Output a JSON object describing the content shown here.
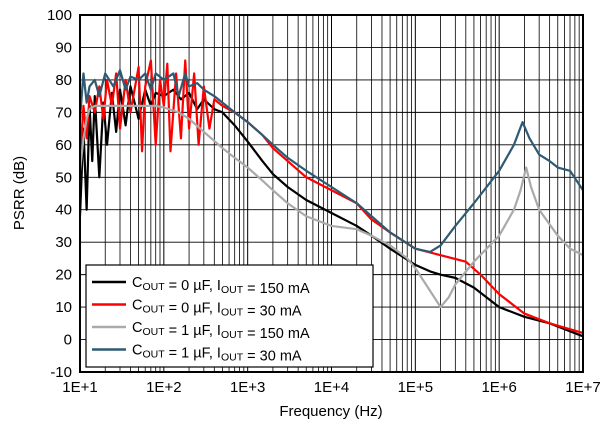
{
  "chart_data": {
    "type": "line",
    "xlabel": "Frequency (Hz)",
    "ylabel": "PSRR (dB)",
    "x_scale": "log",
    "xlim": [
      10,
      10000000
    ],
    "ylim": [
      -10,
      100
    ],
    "grid": true,
    "legend_position": "bottom-left",
    "x_tick_labels": [
      "1E+1",
      "1E+2",
      "1E+3",
      "1E+4",
      "1E+5",
      "1E+6",
      "1E+7"
    ],
    "x_tick_values": [
      10,
      100,
      1000,
      10000,
      100000,
      1000000,
      10000000
    ],
    "y_tick_values": [
      -10,
      0,
      10,
      20,
      30,
      40,
      50,
      60,
      70,
      80,
      90,
      100
    ],
    "y_tick_labels": [
      "-10",
      "0",
      "10",
      "20",
      "30",
      "40",
      "50",
      "60",
      "70",
      "80",
      "90",
      "100"
    ],
    "series": [
      {
        "color": "#000000",
        "legend": {
          "pre": "C",
          "sub1": "OUT",
          "mid": " = 0 µF, I",
          "sub2": "OUT",
          "post": " = 150 mA"
        },
        "points": [
          [
            10,
            38
          ],
          [
            11,
            65
          ],
          [
            12,
            40
          ],
          [
            13,
            72
          ],
          [
            14,
            55
          ],
          [
            15,
            75
          ],
          [
            17,
            50
          ],
          [
            19,
            73
          ],
          [
            21,
            60
          ],
          [
            24,
            76
          ],
          [
            27,
            64
          ],
          [
            30,
            77
          ],
          [
            35,
            66
          ],
          [
            40,
            78
          ],
          [
            50,
            68
          ],
          [
            60,
            77
          ],
          [
            70,
            72
          ],
          [
            80,
            76
          ],
          [
            100,
            75
          ],
          [
            130,
            77
          ],
          [
            160,
            74
          ],
          [
            200,
            76
          ],
          [
            250,
            71
          ],
          [
            300,
            74
          ],
          [
            400,
            71
          ],
          [
            500,
            70
          ],
          [
            700,
            66
          ],
          [
            1000,
            61
          ],
          [
            1500,
            55
          ],
          [
            2000,
            51
          ],
          [
            3000,
            47
          ],
          [
            5000,
            43
          ],
          [
            10000,
            39
          ],
          [
            20000,
            35
          ],
          [
            30000,
            32
          ],
          [
            50000,
            28
          ],
          [
            100000,
            23
          ],
          [
            150000,
            21
          ],
          [
            200000,
            20
          ],
          [
            300000,
            19
          ],
          [
            500000,
            16
          ],
          [
            1000000,
            10
          ],
          [
            2000000,
            7
          ],
          [
            4000000,
            5
          ],
          [
            10000000,
            1
          ]
        ]
      },
      {
        "color": "#ff0000",
        "legend": {
          "pre": "C",
          "sub1": "OUT",
          "mid": " = 0 µF, I",
          "sub2": "OUT",
          "post": " = 30 mA"
        },
        "points": [
          [
            10,
            55
          ],
          [
            11,
            72
          ],
          [
            12,
            62
          ],
          [
            13,
            75
          ],
          [
            15,
            70
          ],
          [
            17,
            78
          ],
          [
            19,
            68
          ],
          [
            21,
            80
          ],
          [
            24,
            72
          ],
          [
            27,
            82
          ],
          [
            30,
            65
          ],
          [
            35,
            80
          ],
          [
            40,
            70
          ],
          [
            50,
            84
          ],
          [
            55,
            58
          ],
          [
            60,
            78
          ],
          [
            70,
            86
          ],
          [
            80,
            60
          ],
          [
            90,
            80
          ],
          [
            100,
            72
          ],
          [
            110,
            85
          ],
          [
            120,
            58
          ],
          [
            140,
            82
          ],
          [
            160,
            62
          ],
          [
            180,
            86
          ],
          [
            200,
            65
          ],
          [
            230,
            82
          ],
          [
            260,
            60
          ],
          [
            300,
            78
          ],
          [
            350,
            65
          ],
          [
            400,
            74
          ],
          [
            500,
            72
          ],
          [
            700,
            70
          ],
          [
            1000,
            67
          ],
          [
            1500,
            63
          ],
          [
            2000,
            59
          ],
          [
            3000,
            55
          ],
          [
            5000,
            50
          ],
          [
            10000,
            46
          ],
          [
            20000,
            42
          ],
          [
            30000,
            37
          ],
          [
            50000,
            33
          ],
          [
            100000,
            28
          ],
          [
            200000,
            26
          ],
          [
            400000,
            24
          ],
          [
            600000,
            20
          ],
          [
            1000000,
            14
          ],
          [
            2000000,
            8
          ],
          [
            4000000,
            5
          ],
          [
            10000000,
            2
          ]
        ]
      },
      {
        "color": "#aaaaaa",
        "legend": {
          "pre": "C",
          "sub1": "OUT",
          "mid": " = 1 µF, I",
          "sub2": "OUT",
          "post": " = 150 mA"
        },
        "points": [
          [
            10,
            52
          ],
          [
            11,
            62
          ],
          [
            12,
            68
          ],
          [
            13,
            71
          ],
          [
            15,
            72
          ],
          [
            20,
            72
          ],
          [
            30,
            72
          ],
          [
            50,
            72
          ],
          [
            80,
            72
          ],
          [
            100,
            71.5
          ],
          [
            150,
            70
          ],
          [
            200,
            68
          ],
          [
            300,
            64
          ],
          [
            500,
            59
          ],
          [
            700,
            56
          ],
          [
            1000,
            53
          ],
          [
            1500,
            49
          ],
          [
            2000,
            46
          ],
          [
            3000,
            42
          ],
          [
            5000,
            38
          ],
          [
            10000,
            35
          ],
          [
            20000,
            34
          ],
          [
            30000,
            32
          ],
          [
            50000,
            29
          ],
          [
            80000,
            25
          ],
          [
            100000,
            22
          ],
          [
            150000,
            15
          ],
          [
            200000,
            10
          ],
          [
            250000,
            13
          ],
          [
            300000,
            17
          ],
          [
            500000,
            24
          ],
          [
            1000000,
            32
          ],
          [
            1500000,
            40
          ],
          [
            1800000,
            46
          ],
          [
            2100000,
            53
          ],
          [
            2400000,
            47
          ],
          [
            3000000,
            40
          ],
          [
            5000000,
            32
          ],
          [
            7000000,
            28
          ],
          [
            10000000,
            26
          ]
        ]
      },
      {
        "color": "#2e5a73",
        "legend": {
          "pre": "C",
          "sub1": "OUT",
          "mid": " = 1 µF, I",
          "sub2": "OUT",
          "post": " = 30 mA"
        },
        "points": [
          [
            10,
            68
          ],
          [
            11,
            82
          ],
          [
            12,
            73
          ],
          [
            13,
            78
          ],
          [
            15,
            80
          ],
          [
            17,
            75
          ],
          [
            20,
            82
          ],
          [
            25,
            78
          ],
          [
            30,
            83
          ],
          [
            35,
            77
          ],
          [
            40,
            81
          ],
          [
            50,
            80
          ],
          [
            60,
            82
          ],
          [
            70,
            77
          ],
          [
            80,
            82
          ],
          [
            100,
            80
          ],
          [
            130,
            82
          ],
          [
            150,
            75
          ],
          [
            180,
            82
          ],
          [
            200,
            78
          ],
          [
            250,
            79
          ],
          [
            300,
            77
          ],
          [
            400,
            75
          ],
          [
            500,
            73
          ],
          [
            700,
            70
          ],
          [
            1000,
            67
          ],
          [
            1500,
            63
          ],
          [
            2000,
            60
          ],
          [
            3000,
            56
          ],
          [
            5000,
            52
          ],
          [
            10000,
            47
          ],
          [
            20000,
            42
          ],
          [
            30000,
            38
          ],
          [
            50000,
            33
          ],
          [
            100000,
            28
          ],
          [
            150000,
            27
          ],
          [
            200000,
            29
          ],
          [
            300000,
            35
          ],
          [
            500000,
            42
          ],
          [
            1000000,
            52
          ],
          [
            1500000,
            60
          ],
          [
            1900000,
            67
          ],
          [
            2300000,
            62
          ],
          [
            3000000,
            57
          ],
          [
            4000000,
            55
          ],
          [
            5000000,
            53
          ],
          [
            7000000,
            52
          ],
          [
            10000000,
            46
          ]
        ]
      }
    ]
  }
}
